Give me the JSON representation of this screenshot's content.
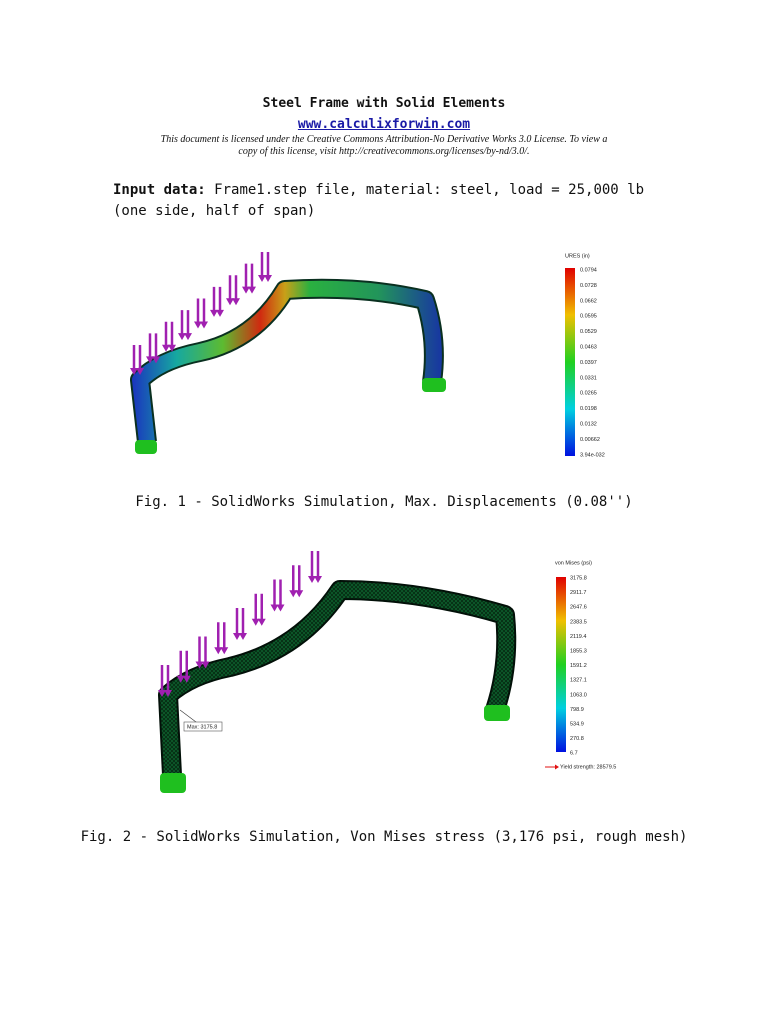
{
  "header": {
    "title": "Steel Frame with Solid Elements",
    "link": "www.calculixforwin.com",
    "license": "This document is licensed under the Creative Commons Attribution-No Derivative Works 3.0 License. To view a copy of this license, visit http://creativecommons.org/licenses/by-nd/3.0/."
  },
  "input": {
    "label": "Input data:",
    "text": "Frame1.step file, material: steel, load = 25,000 lb (one side, half of span)"
  },
  "figures": [
    {
      "legend_title": "URES (in)",
      "legend_labels": [
        "0.0794",
        "0.0728",
        "0.0662",
        "0.0595",
        "0.0529",
        "0.0463",
        "0.0397",
        "0.0331",
        "0.0265",
        "0.0198",
        "0.0132",
        "0.00662",
        "3.94e-032"
      ],
      "caption": "Fig. 1 - SolidWorks Simulation, Max. Displacements (0.08'')"
    },
    {
      "legend_title": "von Mises (psi)",
      "legend_labels": [
        "3175.8",
        "2911.7",
        "2647.6",
        "2383.5",
        "2119.4",
        "1855.3",
        "1591.2",
        "1327.1",
        "1063.0",
        "798.9",
        "534.9",
        "270.8",
        "6.7"
      ],
      "max_label": "Max: 3175.8",
      "yield_label": "Yield strength: 28579.5",
      "caption": "Fig. 2 - SolidWorks Simulation, Von Mises stress (3,176 psi, rough mesh)"
    }
  ]
}
